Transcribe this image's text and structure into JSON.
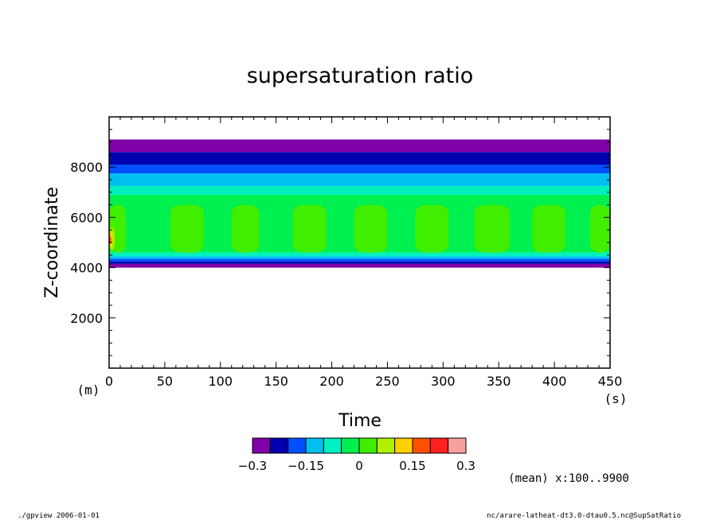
{
  "chart_data": {
    "type": "heatmap",
    "title": "supersaturation ratio",
    "xlabel": "Time",
    "ylabel": "Z-coordinate",
    "x_unit": "(s)",
    "y_unit": "(m)",
    "xlim": [
      0,
      450
    ],
    "ylim": [
      0,
      10000
    ],
    "x_ticks": [
      0,
      50,
      100,
      150,
      200,
      250,
      300,
      350,
      400,
      450
    ],
    "y_ticks": [
      2000,
      4000,
      6000,
      8000
    ],
    "colorbar": {
      "levels": [
        -0.3,
        -0.25,
        -0.2,
        -0.15,
        -0.1,
        -0.05,
        0,
        0.05,
        0.1,
        0.15,
        0.2,
        0.25,
        0.3
      ],
      "tick_labels": [
        "-0.3",
        "-0.15",
        "0",
        "0.15",
        "0.3"
      ],
      "colors": [
        "#7f00a6",
        "#0000b0",
        "#0050ff",
        "#00c0f0",
        "#00f0c0",
        "#00f050",
        "#40ee00",
        "#b0f000",
        "#ffd000",
        "#ff5000",
        "#ff2020",
        "#f8a0a0"
      ]
    },
    "layers": [
      {
        "z_bottom": 4000,
        "z_top": 4150,
        "class": 0
      },
      {
        "z_bottom": 4150,
        "z_top": 4250,
        "class": 1
      },
      {
        "z_bottom": 4250,
        "z_top": 4350,
        "class": 2
      },
      {
        "z_bottom": 4350,
        "z_top": 4450,
        "class": 3
      },
      {
        "z_bottom": 4450,
        "z_top": 4600,
        "class": 4
      },
      {
        "z_bottom": 4600,
        "z_top": 6900,
        "class": 5
      },
      {
        "z_bottom": 6900,
        "z_top": 7250,
        "class": 4
      },
      {
        "z_bottom": 7250,
        "z_top": 7750,
        "class": 3
      },
      {
        "z_bottom": 7750,
        "z_top": 8100,
        "class": 2
      },
      {
        "z_bottom": 8100,
        "z_top": 8600,
        "class": 1
      },
      {
        "z_bottom": 8600,
        "z_top": 9100,
        "class": 0
      }
    ],
    "cells": [
      {
        "t_start": 0,
        "t_end": 15,
        "z_bottom": 4600,
        "z_top": 6500,
        "class": 6
      },
      {
        "t_start": 55,
        "t_end": 85,
        "z_bottom": 4600,
        "z_top": 6500,
        "class": 6
      },
      {
        "t_start": 110,
        "t_end": 135,
        "z_bottom": 4600,
        "z_top": 6500,
        "class": 6
      },
      {
        "t_start": 165,
        "t_end": 195,
        "z_bottom": 4600,
        "z_top": 6500,
        "class": 6
      },
      {
        "t_start": 220,
        "t_end": 250,
        "z_bottom": 4600,
        "z_top": 6500,
        "class": 6
      },
      {
        "t_start": 275,
        "t_end": 305,
        "z_bottom": 4600,
        "z_top": 6500,
        "class": 6
      },
      {
        "t_start": 328,
        "t_end": 360,
        "z_bottom": 4600,
        "z_top": 6500,
        "class": 6
      },
      {
        "t_start": 380,
        "t_end": 410,
        "z_bottom": 4600,
        "z_top": 6500,
        "class": 6
      },
      {
        "t_start": 432,
        "t_end": 450,
        "z_bottom": 4600,
        "z_top": 6500,
        "class": 6
      },
      {
        "t_start": 0,
        "t_end": 5,
        "z_bottom": 4700,
        "z_top": 5600,
        "class": 7
      },
      {
        "t_start": 0,
        "t_end": 3,
        "z_bottom": 4850,
        "z_top": 5400,
        "class": 8
      },
      {
        "t_start": 0,
        "t_end": 2,
        "z_bottom": 4950,
        "z_top": 5250,
        "class": 9
      }
    ]
  },
  "annotations": {
    "mean": "(mean) x:100..9900",
    "program": "./gpview  2006-01-01",
    "source": "nc/arare-latheat-dt3.0-dtau0.5.nc@SupSatRatio"
  }
}
